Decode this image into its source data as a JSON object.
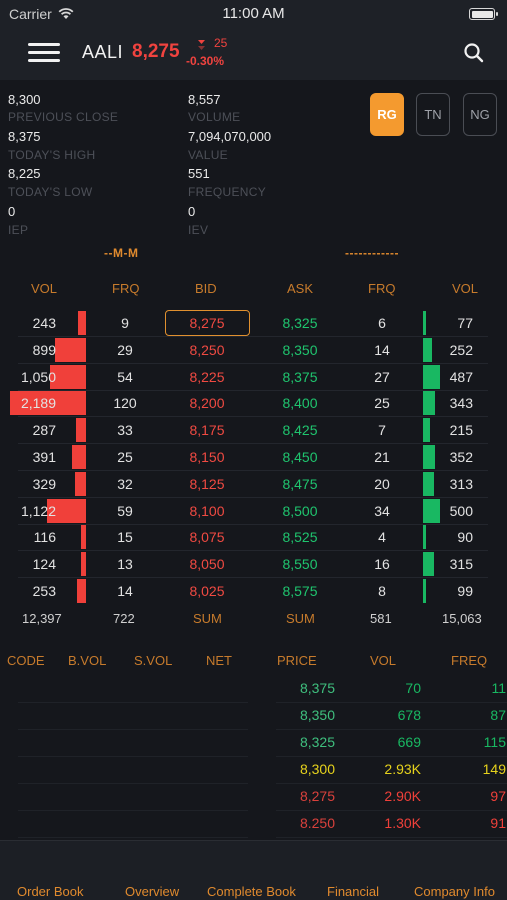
{
  "status": {
    "carrier": "Carrier",
    "time": "11:00 AM"
  },
  "header": {
    "ticker": "AALI",
    "price": "8,275",
    "change": "25",
    "change_pct": "-0.30%",
    "change_icon": "down-triangle"
  },
  "stats": {
    "left": [
      {
        "value": "8,300",
        "label": "PREVIOUS CLOSE"
      },
      {
        "value": "8,375",
        "label": "TODAY'S HIGH"
      },
      {
        "value": "8,225",
        "label": "TODAY'S LOW"
      },
      {
        "value": "0",
        "label": "IEP"
      }
    ],
    "right": [
      {
        "value": "8,557",
        "label": "VOLUME"
      },
      {
        "value": "7,094,070,000",
        "label": "VALUE"
      },
      {
        "value": "551",
        "label": "FREQUENCY"
      },
      {
        "value": "0",
        "label": "IEV"
      }
    ]
  },
  "markets": [
    "RG",
    "TN",
    "NG"
  ],
  "active_market": "RG",
  "subtitles": {
    "left": "--M-M",
    "right": "------------"
  },
  "order_book": {
    "headers": [
      "VOL",
      "FRQ",
      "BID",
      "ASK",
      "FRQ",
      "VOL"
    ],
    "rows": [
      {
        "bid_vol": "243",
        "bid_frq": "9",
        "bid": "8,275",
        "ask": "8,325",
        "ask_frq": "6",
        "ask_vol": "77"
      },
      {
        "bid_vol": "899",
        "bid_frq": "29",
        "bid": "8,250",
        "ask": "8,350",
        "ask_frq": "14",
        "ask_vol": "252"
      },
      {
        "bid_vol": "1,050",
        "bid_frq": "54",
        "bid": "8,225",
        "ask": "8,375",
        "ask_frq": "27",
        "ask_vol": "487"
      },
      {
        "bid_vol": "2,189",
        "bid_frq": "120",
        "bid": "8,200",
        "ask": "8,400",
        "ask_frq": "25",
        "ask_vol": "343"
      },
      {
        "bid_vol": "287",
        "bid_frq": "33",
        "bid": "8,175",
        "ask": "8,425",
        "ask_frq": "7",
        "ask_vol": "215"
      },
      {
        "bid_vol": "391",
        "bid_frq": "25",
        "bid": "8,150",
        "ask": "8,450",
        "ask_frq": "21",
        "ask_vol": "352"
      },
      {
        "bid_vol": "329",
        "bid_frq": "32",
        "bid": "8,125",
        "ask": "8,475",
        "ask_frq": "20",
        "ask_vol": "313"
      },
      {
        "bid_vol": "1,122",
        "bid_frq": "59",
        "bid": "8,100",
        "ask": "8,500",
        "ask_frq": "34",
        "ask_vol": "500"
      },
      {
        "bid_vol": "116",
        "bid_frq": "15",
        "bid": "8,075",
        "ask": "8,525",
        "ask_frq": "4",
        "ask_vol": "90"
      },
      {
        "bid_vol": "124",
        "bid_frq": "13",
        "bid": "8,050",
        "ask": "8,550",
        "ask_frq": "16",
        "ask_vol": "315"
      },
      {
        "bid_vol": "253",
        "bid_frq": "14",
        "bid": "8,025",
        "ask": "8,575",
        "ask_frq": "8",
        "ask_vol": "99"
      }
    ],
    "summary": {
      "bid_vol": "12,397",
      "bid_frq": "722",
      "bid_label": "SUM",
      "ask_label": "SUM",
      "ask_frq": "581",
      "ask_vol": "15,063"
    }
  },
  "broker": {
    "headers": [
      "CODE",
      "B.VOL",
      "S.VOL",
      "NET"
    ]
  },
  "done_summary": {
    "headers": [
      "PRICE",
      "VOL",
      "FREQ"
    ],
    "rows": [
      {
        "price": "8,375",
        "vol": "70",
        "freq": "11",
        "tone": "up"
      },
      {
        "price": "8,350",
        "vol": "678",
        "freq": "87",
        "tone": "up"
      },
      {
        "price": "8,325",
        "vol": "669",
        "freq": "115",
        "tone": "up"
      },
      {
        "price": "8,300",
        "vol": "2.93K",
        "freq": "149",
        "tone": "flat"
      },
      {
        "price": "8,275",
        "vol": "2.90K",
        "freq": "97",
        "tone": "down"
      },
      {
        "price": "8.250",
        "vol": "1.30K",
        "freq": "91",
        "tone": "down"
      }
    ]
  },
  "tabs": [
    "Order Book",
    "Overview",
    "Complete Book",
    "Financial",
    "Company Info"
  ],
  "colors": {
    "accent": "#f49a2f",
    "bid": "#f0403a",
    "ask": "#19b862",
    "flat": "#e6d21c",
    "header_text": "#c77b2c"
  }
}
